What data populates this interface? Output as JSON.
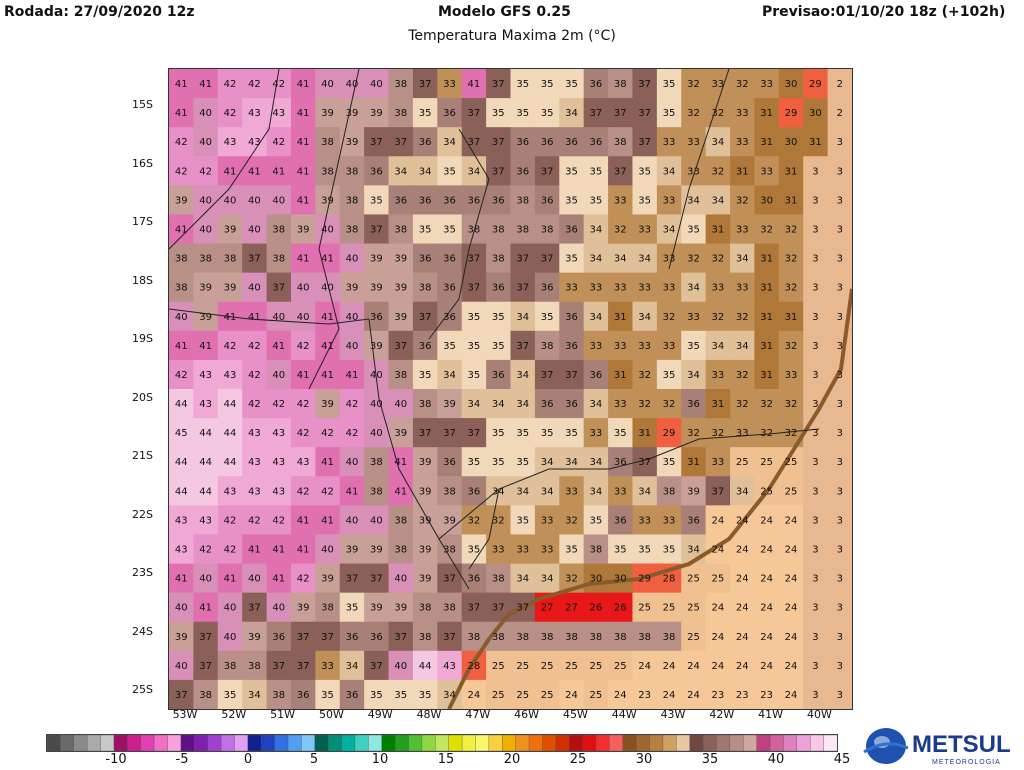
{
  "header": {
    "left": "Rodada: 27/09/2020 12z",
    "center": "Modelo GFS 0.25",
    "right": "Previsao:01/10/20 18z (+102h)",
    "subtitle": "Temperatura Maxima 2m (°C)"
  },
  "map": {
    "lat_labels": [
      "15S",
      "16S",
      "17S",
      "18S",
      "19S",
      "20S",
      "21S",
      "22S",
      "23S",
      "24S",
      "25S"
    ],
    "lon_labels": [
      "53W",
      "52W",
      "51W",
      "50W",
      "49W",
      "48W",
      "47W",
      "46W",
      "45W",
      "44W",
      "43W",
      "42W",
      "41W",
      "40W"
    ],
    "grid_values": [
      [
        41,
        41,
        42,
        42,
        42,
        41,
        40,
        40,
        40,
        38,
        37,
        33,
        41,
        37,
        35,
        35,
        35,
        36,
        38,
        37,
        35,
        32,
        33,
        32,
        33,
        30,
        29,
        2
      ],
      [
        41,
        40,
        42,
        43,
        43,
        41,
        39,
        39,
        39,
        38,
        35,
        36,
        37,
        35,
        35,
        35,
        34,
        37,
        37,
        37,
        35,
        32,
        32,
        33,
        31,
        29,
        30,
        2
      ],
      [
        42,
        40,
        43,
        43,
        42,
        41,
        38,
        39,
        37,
        37,
        36,
        34,
        37,
        37,
        36,
        36,
        36,
        36,
        38,
        37,
        33,
        33,
        34,
        33,
        31,
        30,
        31,
        3
      ],
      [
        42,
        42,
        41,
        41,
        41,
        41,
        38,
        38,
        36,
        34,
        34,
        35,
        34,
        37,
        36,
        37,
        35,
        35,
        37,
        35,
        34,
        33,
        32,
        31,
        33,
        31,
        3,
        3
      ],
      [
        39,
        40,
        40,
        40,
        40,
        41,
        39,
        38,
        35,
        36,
        36,
        36,
        36,
        36,
        38,
        36,
        35,
        35,
        33,
        35,
        33,
        34,
        34,
        32,
        30,
        31,
        3,
        3
      ],
      [
        41,
        40,
        39,
        40,
        38,
        39,
        40,
        38,
        37,
        38,
        35,
        35,
        38,
        38,
        38,
        38,
        36,
        34,
        32,
        33,
        34,
        35,
        31,
        33,
        32,
        32,
        3,
        3
      ],
      [
        38,
        38,
        38,
        37,
        38,
        41,
        41,
        40,
        39,
        39,
        36,
        36,
        37,
        38,
        37,
        37,
        35,
        34,
        34,
        34,
        33,
        32,
        32,
        34,
        31,
        32,
        3,
        3
      ],
      [
        38,
        39,
        39,
        40,
        37,
        40,
        40,
        39,
        39,
        39,
        38,
        36,
        37,
        36,
        37,
        36,
        33,
        33,
        33,
        33,
        33,
        34,
        33,
        33,
        31,
        32,
        3,
        3
      ],
      [
        40,
        39,
        41,
        41,
        40,
        40,
        41,
        40,
        36,
        39,
        37,
        36,
        35,
        35,
        34,
        35,
        36,
        34,
        31,
        34,
        32,
        33,
        32,
        32,
        31,
        31,
        3,
        3
      ],
      [
        41,
        41,
        42,
        42,
        41,
        42,
        41,
        40,
        39,
        37,
        36,
        35,
        35,
        35,
        37,
        38,
        36,
        33,
        33,
        33,
        33,
        35,
        34,
        34,
        31,
        32,
        3,
        3
      ],
      [
        42,
        43,
        43,
        42,
        40,
        41,
        41,
        41,
        40,
        38,
        35,
        34,
        35,
        36,
        34,
        37,
        37,
        36,
        31,
        32,
        35,
        34,
        33,
        32,
        31,
        33,
        3,
        3
      ],
      [
        44,
        43,
        44,
        42,
        42,
        42,
        39,
        42,
        40,
        40,
        38,
        39,
        34,
        34,
        34,
        36,
        36,
        34,
        33,
        32,
        32,
        36,
        31,
        32,
        32,
        32,
        3,
        3
      ],
      [
        45,
        44,
        44,
        43,
        43,
        42,
        42,
        42,
        40,
        39,
        37,
        37,
        37,
        35,
        35,
        35,
        35,
        33,
        35,
        31,
        29,
        32,
        32,
        33,
        32,
        32,
        3,
        3
      ],
      [
        44,
        44,
        44,
        43,
        43,
        43,
        41,
        40,
        38,
        41,
        39,
        36,
        35,
        35,
        35,
        34,
        34,
        34,
        36,
        37,
        35,
        31,
        33,
        25,
        25,
        25,
        3,
        3
      ],
      [
        44,
        44,
        43,
        43,
        43,
        42,
        42,
        41,
        38,
        41,
        39,
        38,
        36,
        34,
        34,
        34,
        33,
        34,
        33,
        34,
        38,
        39,
        37,
        34,
        25,
        25,
        3,
        3
      ],
      [
        43,
        43,
        42,
        42,
        42,
        41,
        41,
        40,
        40,
        38,
        39,
        39,
        32,
        32,
        35,
        33,
        32,
        35,
        36,
        33,
        33,
        36,
        24,
        24,
        24,
        24,
        3,
        3
      ],
      [
        43,
        42,
        42,
        41,
        41,
        41,
        40,
        39,
        39,
        38,
        39,
        38,
        35,
        33,
        33,
        33,
        35,
        38,
        35,
        35,
        35,
        34,
        24,
        24,
        24,
        24,
        3,
        3
      ],
      [
        41,
        40,
        41,
        40,
        41,
        42,
        39,
        37,
        37,
        40,
        39,
        37,
        36,
        38,
        34,
        34,
        32,
        30,
        30,
        29,
        28,
        25,
        25,
        24,
        24,
        24,
        3,
        3
      ],
      [
        40,
        41,
        40,
        37,
        40,
        39,
        38,
        35,
        39,
        39,
        38,
        38,
        37,
        37,
        37,
        27,
        27,
        26,
        26,
        25,
        25,
        25,
        24,
        24,
        24,
        24,
        3,
        3
      ],
      [
        39,
        37,
        40,
        39,
        36,
        37,
        37,
        36,
        36,
        37,
        38,
        37,
        38,
        38,
        38,
        38,
        38,
        38,
        38,
        38,
        38,
        25,
        24,
        24,
        24,
        24,
        3,
        3
      ],
      [
        40,
        37,
        38,
        38,
        37,
        37,
        33,
        34,
        37,
        40,
        44,
        43,
        28,
        25,
        25,
        25,
        25,
        25,
        25,
        24,
        24,
        24,
        24,
        24,
        24,
        24,
        3,
        3
      ],
      [
        37,
        38,
        35,
        34,
        38,
        36,
        35,
        36,
        35,
        35,
        35,
        34,
        24,
        25,
        25,
        25,
        24,
        25,
        24,
        23,
        24,
        24,
        23,
        23,
        23,
        24,
        3,
        3
      ]
    ],
    "coast_color": "#8a5a2a",
    "state_border_color": "#222222"
  },
  "scale": {
    "labels": [
      "-10",
      "-5",
      "0",
      "5",
      "10",
      "15",
      "20",
      "25",
      "30",
      "35",
      "40",
      "45"
    ],
    "colors": [
      "#4a4a4a",
      "#6a6a6a",
      "#8a8a8a",
      "#aaaaaa",
      "#c8c8c8",
      "#a0106a",
      "#cc2090",
      "#e040b0",
      "#f070c8",
      "#f8a0dc",
      "#601088",
      "#8020b0",
      "#a040d0",
      "#c070e8",
      "#e0a0f4",
      "#102090",
      "#2040c0",
      "#3070e0",
      "#50a0f0",
      "#80c8f8",
      "#006050",
      "#00907a",
      "#00b0a0",
      "#40d0c0",
      "#90e8e0",
      "#008000",
      "#20a020",
      "#50c030",
      "#90d840",
      "#c0e860",
      "#e0e000",
      "#f0f040",
      "#f8f870",
      "#f8d040",
      "#f0b000",
      "#f09020",
      "#f07010",
      "#e05000",
      "#d03000",
      "#b01010",
      "#e01010",
      "#f03030",
      "#f86060",
      "#8a5020",
      "#a06830",
      "#b88040",
      "#d0a060",
      "#e8c8a0",
      "#704840",
      "#8a6058",
      "#a07870",
      "#b89088",
      "#d0a8a0",
      "#c04080",
      "#d060a0",
      "#e080c0",
      "#f0a0d8",
      "#f8c8e8",
      "#fce8f4"
    ]
  },
  "logo": {
    "text": "METSUL",
    "subtext": "METEOROLOGIA",
    "color": "#1a3a8a"
  }
}
